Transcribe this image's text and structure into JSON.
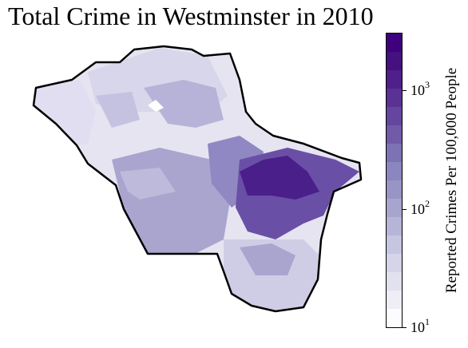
{
  "title": "Total Crime in Westminster in 2010",
  "colorbar": {
    "label": "Reported Crimes Per 100,000 People",
    "scale": "log",
    "range": [
      10,
      3000
    ],
    "colors": [
      "#fcfbfd",
      "#efedf5",
      "#e2e1ef",
      "#d5d4e8",
      "#c6c6e0",
      "#b6b5d8",
      "#a7a4ce",
      "#9894c6",
      "#8a86bf",
      "#7d72b3",
      "#715ba8",
      "#65469f",
      "#5a3294",
      "#4f1f8b",
      "#44117e",
      "#3f007d"
    ],
    "ticks": [
      {
        "base": "10",
        "exp": "1"
      },
      {
        "base": "10",
        "exp": "2"
      },
      {
        "base": "10",
        "exp": "3"
      }
    ]
  },
  "regions_colors": {
    "light": "#e6e4f1",
    "light_mid": "#cfcde5",
    "mid": "#a9a5cf",
    "mid_dark": "#8f88c2",
    "dark": "#6a4fa6",
    "darkest": "#4a1f8a"
  }
}
